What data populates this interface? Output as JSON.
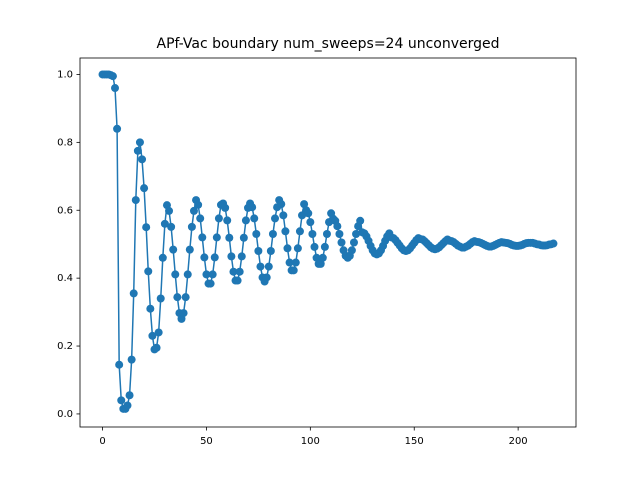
{
  "chart_data": {
    "type": "line",
    "title": "APf-Vac boundary num_sweeps=24 unconverged",
    "x": [
      0,
      1,
      2,
      3,
      4,
      5,
      6,
      7,
      8,
      9,
      10,
      11,
      12,
      13,
      14,
      15,
      16,
      17,
      18,
      19,
      20,
      21,
      22,
      23,
      24,
      25,
      26,
      27,
      28,
      29,
      30,
      31,
      32,
      33,
      34,
      35,
      36,
      37,
      38,
      39,
      40,
      41,
      42,
      43,
      44,
      45,
      46,
      47,
      48,
      49,
      50,
      51,
      52,
      53,
      54,
      55,
      56,
      57,
      58,
      59,
      60,
      61,
      62,
      63,
      64,
      65,
      66,
      67,
      68,
      69,
      70,
      71,
      72,
      73,
      74,
      75,
      76,
      77,
      78,
      79,
      80,
      81,
      82,
      83,
      84,
      85,
      86,
      87,
      88,
      89,
      90,
      91,
      92,
      93,
      94,
      95,
      96,
      97,
      98,
      99,
      100,
      101,
      102,
      103,
      104,
      105,
      106,
      107,
      108,
      109,
      110,
      111,
      112,
      113,
      114,
      115,
      116,
      117,
      118,
      119,
      120,
      121,
      122,
      123,
      124,
      125,
      126,
      127,
      128,
      129,
      130,
      131,
      132,
      133,
      134,
      135,
      136,
      137,
      138,
      139,
      140,
      141,
      142,
      143,
      144,
      145,
      146,
      147,
      148,
      149,
      150,
      151,
      152,
      153,
      154,
      155,
      156,
      157,
      158,
      159,
      160,
      161,
      162,
      163,
      164,
      165,
      166,
      167,
      168,
      169,
      170,
      171,
      172,
      173,
      174,
      175,
      176,
      177,
      178,
      179,
      180,
      181,
      182,
      183,
      184,
      185,
      186,
      187,
      188,
      189,
      190,
      191,
      192,
      193,
      194,
      195,
      196,
      197,
      198,
      199,
      200,
      201,
      202,
      203,
      204,
      205,
      206,
      207,
      208,
      209,
      210,
      211,
      212,
      213,
      214,
      215,
      216,
      217
    ],
    "series": [
      {
        "color": "#1f77b4",
        "values": [
          1.0,
          1.0,
          1.0,
          1.0,
          0.998,
          0.995,
          0.96,
          0.84,
          0.145,
          0.04,
          0.015,
          0.015,
          0.025,
          0.055,
          0.16,
          0.355,
          0.63,
          0.775,
          0.8,
          0.75,
          0.665,
          0.55,
          0.42,
          0.31,
          0.23,
          0.19,
          0.195,
          0.24,
          0.34,
          0.46,
          0.56,
          0.615,
          0.598,
          0.551,
          0.484,
          0.411,
          0.344,
          0.297,
          0.28,
          0.297,
          0.344,
          0.411,
          0.484,
          0.551,
          0.598,
          0.63,
          0.616,
          0.576,
          0.52,
          0.461,
          0.411,
          0.384,
          0.384,
          0.411,
          0.461,
          0.52,
          0.576,
          0.616,
          0.62,
          0.607,
          0.57,
          0.519,
          0.464,
          0.419,
          0.393,
          0.393,
          0.419,
          0.464,
          0.519,
          0.57,
          0.607,
          0.62,
          0.609,
          0.576,
          0.53,
          0.48,
          0.434,
          0.402,
          0.39,
          0.402,
          0.434,
          0.48,
          0.53,
          0.576,
          0.609,
          0.63,
          0.618,
          0.585,
          0.538,
          0.488,
          0.446,
          0.423,
          0.423,
          0.446,
          0.488,
          0.538,
          0.585,
          0.618,
          0.6,
          0.591,
          0.565,
          0.53,
          0.492,
          0.46,
          0.442,
          0.442,
          0.46,
          0.492,
          0.53,
          0.565,
          0.591,
          0.575,
          0.569,
          0.553,
          0.53,
          0.505,
          0.482,
          0.466,
          0.46,
          0.466,
          0.482,
          0.505,
          0.53,
          0.553,
          0.569,
          0.535,
          0.532,
          0.523,
          0.51,
          0.495,
          0.482,
          0.473,
          0.47,
          0.473,
          0.482,
          0.495,
          0.51,
          0.523,
          0.532,
          0.52,
          0.518,
          0.512,
          0.504,
          0.496,
          0.488,
          0.482,
          0.48,
          0.482,
          0.488,
          0.496,
          0.504,
          0.512,
          0.518,
          0.515,
          0.514,
          0.509,
          0.503,
          0.497,
          0.491,
          0.487,
          0.485,
          0.487,
          0.491,
          0.497,
          0.503,
          0.509,
          0.514,
          0.51,
          0.509,
          0.506,
          0.501,
          0.496,
          0.493,
          0.49,
          0.49,
          0.493,
          0.496,
          0.501,
          0.506,
          0.509,
          0.507,
          0.506,
          0.504,
          0.501,
          0.498,
          0.495,
          0.493,
          0.493,
          0.495,
          0.498,
          0.501,
          0.504,
          0.506,
          0.505,
          0.504,
          0.503,
          0.501,
          0.498,
          0.496,
          0.495,
          0.495,
          0.496,
          0.498,
          0.501,
          0.503,
          0.504,
          0.504,
          0.504,
          0.502,
          0.5,
          0.499,
          0.497,
          0.496,
          0.496,
          0.497,
          0.499,
          0.5,
          0.502
        ]
      }
    ],
    "xlim": [
      -10.85,
      227.85
    ],
    "ylim": [
      -0.0385,
      1.0485
    ],
    "xticks": [
      0,
      50,
      100,
      150,
      200
    ],
    "yticks": [
      {
        "value": 0,
        "label": "0.0"
      },
      0.2,
      0.4,
      0.6,
      0.8,
      {
        "value": 1,
        "label": "1.0"
      }
    ],
    "markers": true
  }
}
